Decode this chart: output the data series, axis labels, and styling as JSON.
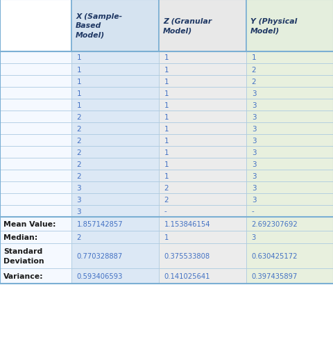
{
  "headers": [
    "",
    "X (Sample-\nBased\nModel)",
    "Z (Granular\nModel)",
    "Y (Physical\nModel)"
  ],
  "data_rows": [
    [
      "",
      "1",
      "1",
      "1"
    ],
    [
      "",
      "1",
      "1",
      "2"
    ],
    [
      "",
      "1",
      "1",
      "2"
    ],
    [
      "",
      "1",
      "1",
      "3"
    ],
    [
      "",
      "1",
      "1",
      "3"
    ],
    [
      "",
      "2",
      "1",
      "3"
    ],
    [
      "",
      "2",
      "1",
      "3"
    ],
    [
      "",
      "2",
      "1",
      "3"
    ],
    [
      "",
      "2",
      "1",
      "3"
    ],
    [
      "",
      "2",
      "1",
      "3"
    ],
    [
      "",
      "2",
      "1",
      "3"
    ],
    [
      "",
      "3",
      "2",
      "3"
    ],
    [
      "",
      "3",
      "2",
      "3"
    ],
    [
      "",
      "3",
      "-",
      "-"
    ]
  ],
  "stat_rows": [
    [
      "Mean Value:",
      "1.857142857",
      "1.153846154",
      "2.692307692"
    ],
    [
      "Median:",
      "2",
      "1",
      "3"
    ],
    [
      "Standard\nDeviation",
      "0.770328887",
      "0.375533808",
      "0.630425172"
    ],
    [
      "Variance:",
      "0.593406593",
      "0.141025641",
      "0.397435897"
    ]
  ],
  "header_bg_colors": [
    "#ffffff",
    "#d5e3f0",
    "#e8e8e8",
    "#e4eedd"
  ],
  "col1_color": "#dce8f5",
  "col2_color": "#ececec",
  "col3_color": "#e8f0de",
  "col0_color": "#f5f9ff",
  "stat_label_color": "#1a1a1a",
  "stat_value_color": "#4472c4",
  "data_value_color": "#4472c4",
  "header_text_color": "#1f3864",
  "border_color": "#7bafd4",
  "thin_line_color": "#a8c8e0",
  "figsize": [
    4.81,
    5.06
  ],
  "dpi": 100
}
